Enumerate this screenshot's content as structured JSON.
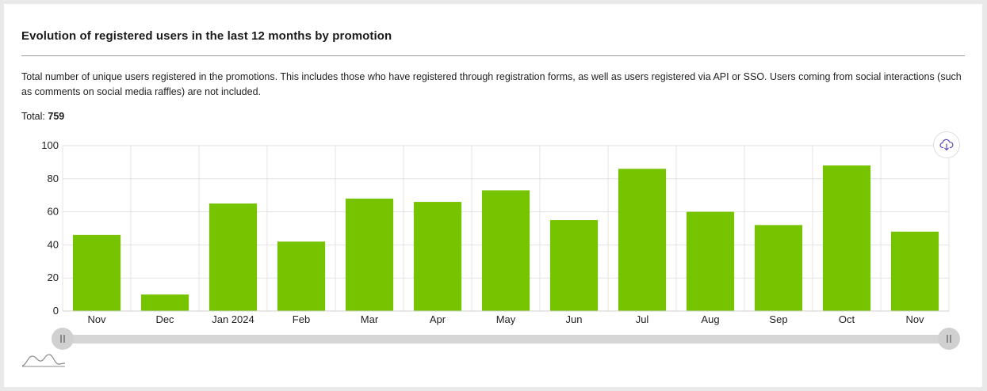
{
  "card": {
    "title": "Evolution of registered users in the last 12 months by promotion",
    "description": "Total number of unique users registered in the promotions. This includes those who have registered through registration forms, as well as users registered via API or SSO. Users coming from social interactions (such as comments on social media raffles) are not included.",
    "total_label": "Total:",
    "total_value": "759"
  },
  "icons": {
    "download": "cloud-download-icon",
    "preview": "mini-chart-icon"
  },
  "colors": {
    "bar": "#76c400",
    "accent": "#5b4bbd"
  },
  "chart_data": {
    "type": "bar",
    "categories": [
      "Nov",
      "Dec",
      "Jan 2024",
      "Feb",
      "Mar",
      "Apr",
      "May",
      "Jun",
      "Jul",
      "Aug",
      "Sep",
      "Oct",
      "Nov"
    ],
    "values": [
      46,
      10,
      65,
      42,
      68,
      66,
      73,
      55,
      86,
      60,
      52,
      88,
      48
    ],
    "ylim": [
      0,
      100
    ],
    "yticks": [
      0,
      20,
      40,
      60,
      80,
      100
    ],
    "grid": true,
    "title": "",
    "xlabel": "",
    "ylabel": ""
  }
}
